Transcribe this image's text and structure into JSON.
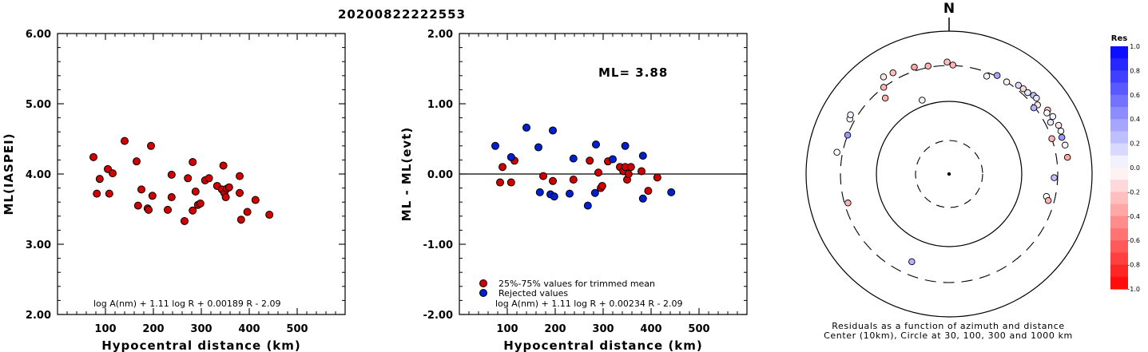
{
  "title": "20200822222553",
  "chart_data": [
    {
      "type": "scatter",
      "xlabel": "Hypocentral distance (km)",
      "ylabel": "ML(IASPEI)",
      "xlim": [
        0,
        600
      ],
      "ylim": [
        2.0,
        6.0
      ],
      "xticks": [
        "100",
        "200",
        "300",
        "400",
        "500"
      ],
      "yticks": [
        "2.00",
        "3.00",
        "4.00",
        "5.00",
        "6.00"
      ],
      "formula": "log A(nm) + 1.11 log R + 0.00189 R - 2.09",
      "grid": false,
      "series": [
        {
          "color": "#d00000",
          "points": [
            [
              75,
              4.24
            ],
            [
              82,
              3.72
            ],
            [
              88,
              3.93
            ],
            [
              105,
              4.07
            ],
            [
              108,
              3.72
            ],
            [
              115,
              4.01
            ],
            [
              140,
              4.47
            ],
            [
              165,
              4.18
            ],
            [
              168,
              3.55
            ],
            [
              175,
              3.78
            ],
            [
              188,
              3.51
            ],
            [
              190,
              3.49
            ],
            [
              195,
              4.4
            ],
            [
              198,
              3.69
            ],
            [
              230,
              3.49
            ],
            [
              238,
              3.99
            ],
            [
              238,
              3.67
            ],
            [
              265,
              3.33
            ],
            [
              272,
              3.94
            ],
            [
              282,
              4.17
            ],
            [
              282,
              3.48
            ],
            [
              288,
              3.75
            ],
            [
              293,
              3.56
            ],
            [
              298,
              3.58
            ],
            [
              308,
              3.91
            ],
            [
              316,
              3.94
            ],
            [
              333,
              3.83
            ],
            [
              343,
              3.78
            ],
            [
              346,
              4.12
            ],
            [
              348,
              3.73
            ],
            [
              351,
              3.67
            ],
            [
              353,
              3.79
            ],
            [
              358,
              3.81
            ],
            [
              380,
              3.97
            ],
            [
              380,
              3.73
            ],
            [
              383,
              3.35
            ],
            [
              396,
              3.46
            ],
            [
              413,
              3.63
            ],
            [
              442,
              3.42
            ]
          ]
        }
      ]
    },
    {
      "type": "scatter",
      "xlabel": "Hypocentral distance (km)",
      "ylabel": "ML - ML(evt)",
      "xlim": [
        0,
        600
      ],
      "ylim": [
        -2.0,
        2.0
      ],
      "xticks": [
        "100",
        "200",
        "300",
        "400",
        "500"
      ],
      "yticks": [
        "-2.00",
        "-1.00",
        "0.00",
        "1.00",
        "2.00"
      ],
      "annotation": "ML= 3.88",
      "reference_line": 0.0,
      "formula": "log A(nm) + 1.11 log R + 0.00234 R - 2.09",
      "legend": "bottom-left",
      "series": [
        {
          "name": "25%-75% values for trimmed mean",
          "color": "#d00000",
          "points": [
            [
              85,
              -0.12
            ],
            [
              90,
              0.1
            ],
            [
              108,
              -0.12
            ],
            [
              115,
              0.19
            ],
            [
              175,
              -0.03
            ],
            [
              195,
              -0.1
            ],
            [
              238,
              -0.08
            ],
            [
              272,
              0.19
            ],
            [
              290,
              0.02
            ],
            [
              295,
              -0.2
            ],
            [
              298,
              -0.17
            ],
            [
              310,
              0.18
            ],
            [
              335,
              0.1
            ],
            [
              342,
              0.04
            ],
            [
              346,
              0.1
            ],
            [
              350,
              -0.08
            ],
            [
              353,
              0.0
            ],
            [
              358,
              0.1
            ],
            [
              380,
              0.04
            ],
            [
              394,
              -0.24
            ],
            [
              413,
              -0.05
            ]
          ]
        },
        {
          "name": "Rejected values",
          "color": "#0020d0",
          "points": [
            [
              75,
              0.4
            ],
            [
              108,
              0.24
            ],
            [
              140,
              0.66
            ],
            [
              165,
              0.38
            ],
            [
              168,
              -0.26
            ],
            [
              190,
              -0.29
            ],
            [
              195,
              0.62
            ],
            [
              198,
              -0.32
            ],
            [
              230,
              -0.28
            ],
            [
              238,
              0.22
            ],
            [
              268,
              -0.45
            ],
            [
              283,
              -0.27
            ],
            [
              285,
              0.42
            ],
            [
              320,
              0.21
            ],
            [
              346,
              0.4
            ],
            [
              383,
              0.26
            ],
            [
              383,
              -0.35
            ],
            [
              442,
              -0.26
            ]
          ]
        }
      ]
    },
    {
      "type": "polar-scatter",
      "north_label": "N",
      "caption_line1": "Residuals as a function of azimuth and distance",
      "caption_line2": "Center (10km), Circle at 30, 100, 300 and 1000 km",
      "colorbar_title": "Res",
      "colorbar_ticks": [
        "1.0",
        "0.8",
        "0.6",
        "0.4",
        "0.2",
        "0.0",
        "-0.2",
        "-0.4",
        "-0.6",
        "-0.8",
        "-1.0"
      ],
      "colorbar_range": [
        -1.0,
        1.0
      ],
      "positive_color": "#0000ff",
      "negative_color": "#ff0000",
      "stations": [
        {
          "az": 21,
          "dist": 268,
          "res": 0.05
        },
        {
          "az": 26,
          "dist": 311,
          "res": 0.35
        },
        {
          "az": 32,
          "dist": 300,
          "res": -0.05
        },
        {
          "az": 38,
          "dist": 345,
          "res": 0.15
        },
        {
          "az": 41,
          "dist": 350,
          "res": -0.15
        },
        {
          "az": 44,
          "dist": 352,
          "res": 0.08
        },
        {
          "az": 47,
          "dist": 380,
          "res": 0.25
        },
        {
          "az": 49,
          "dist": 385,
          "res": 0.1
        },
        {
          "az": 52,
          "dist": 340,
          "res": -0.1
        },
        {
          "az": 52,
          "dist": 290,
          "res": 0.3
        },
        {
          "az": 57,
          "dist": 410,
          "res": -0.2
        },
        {
          "az": 58,
          "dist": 380,
          "res": 0.0
        },
        {
          "az": 61,
          "dist": 425,
          "res": 0.05
        },
        {
          "az": 63,
          "dist": 360,
          "res": 0.1
        },
        {
          "az": 66,
          "dist": 445,
          "res": -0.1
        },
        {
          "az": 69,
          "dist": 443,
          "res": 0.0
        },
        {
          "az": 71,
          "dist": 300,
          "res": -0.3
        },
        {
          "az": 72,
          "dist": 425,
          "res": 0.4
        },
        {
          "az": 76,
          "dist": 440,
          "res": -0.05
        },
        {
          "az": 82,
          "dist": 440,
          "res": -0.35
        },
        {
          "az": 92,
          "dist": 270,
          "res": 0.25
        },
        {
          "az": 103,
          "dist": 230,
          "res": 0.0
        },
        {
          "az": 105,
          "dist": 250,
          "res": -0.3
        },
        {
          "az": 203,
          "dist": 200,
          "res": 0.3
        },
        {
          "az": 254,
          "dist": 270,
          "res": -0.3
        },
        {
          "az": 281,
          "dist": 365,
          "res": 0.0
        },
        {
          "az": 291,
          "dist": 300,
          "res": 0.4
        },
        {
          "az": 299,
          "dist": 355,
          "res": 0.0
        },
        {
          "az": 301,
          "dist": 375,
          "res": 0.05
        },
        {
          "az": 320,
          "dist": 225,
          "res": -0.3
        },
        {
          "az": 323,
          "dist": 300,
          "res": -0.3
        },
        {
          "az": 326,
          "dist": 405,
          "res": -0.1
        },
        {
          "az": 331,
          "dist": 385,
          "res": -0.25
        },
        {
          "az": 340,
          "dist": 120,
          "res": -0.05
        },
        {
          "az": 342,
          "dist": 343,
          "res": -0.35
        },
        {
          "az": 349,
          "dist": 315,
          "res": -0.3
        },
        {
          "az": 359,
          "dist": 338,
          "res": -0.25
        },
        {
          "az": 362,
          "dist": 305,
          "res": -0.3
        }
      ]
    }
  ]
}
